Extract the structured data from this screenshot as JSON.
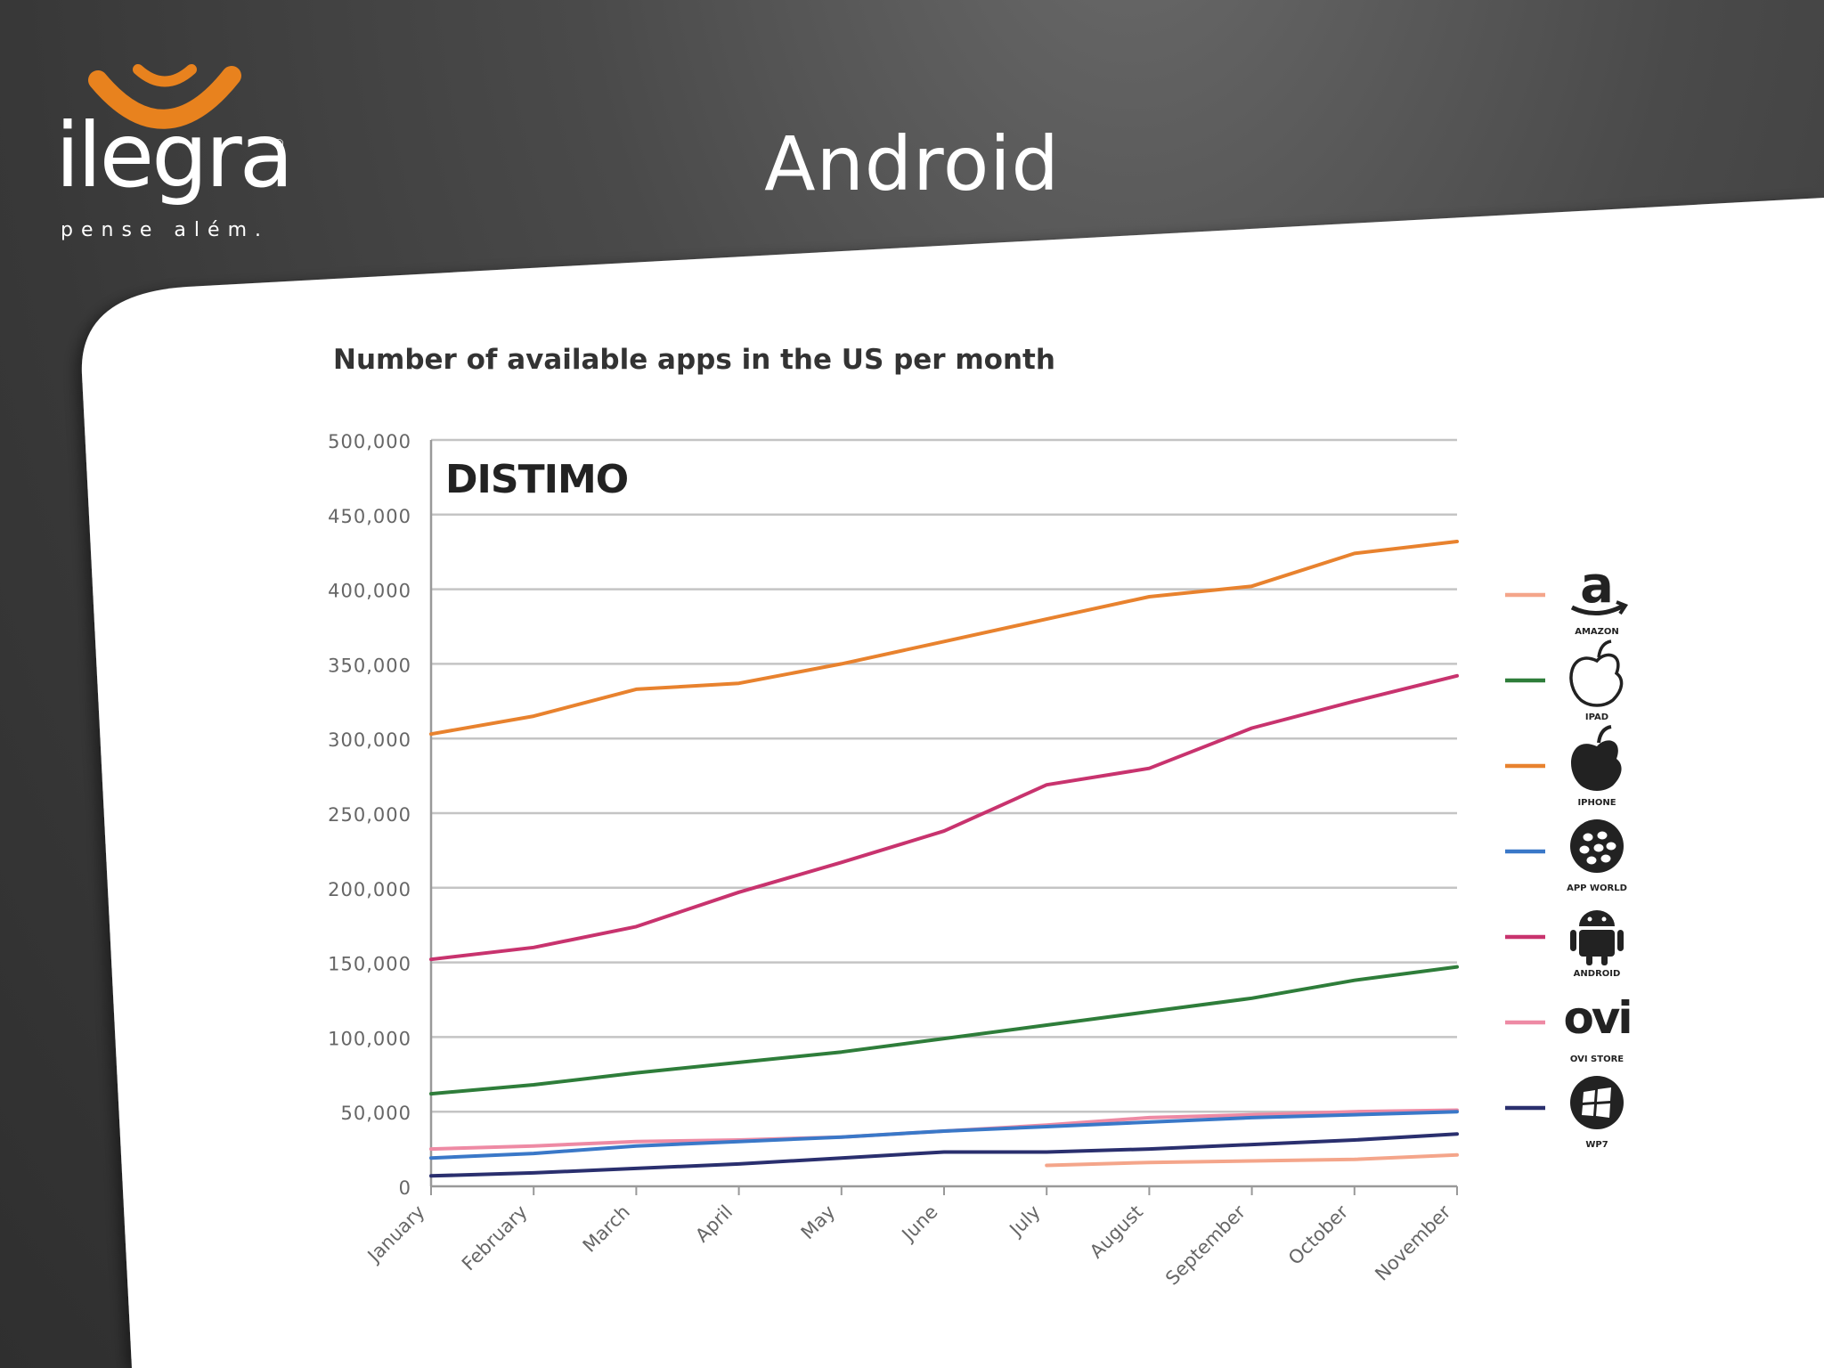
{
  "slide": {
    "title": "Android"
  },
  "logo": {
    "wordmark": "ilegra",
    "tagline": "pense além.",
    "registered": "®",
    "accent_color": "#e8821e"
  },
  "chart_data": {
    "type": "line",
    "title": "Number of available apps in the US per month",
    "watermark": "DISTIMO",
    "xlabel": "",
    "ylabel": "",
    "ylim": [
      0,
      500000
    ],
    "yticks": [
      0,
      50000,
      100000,
      150000,
      200000,
      250000,
      300000,
      350000,
      400000,
      450000,
      500000
    ],
    "ytick_labels": [
      "0",
      "50,000",
      "100,000",
      "150,000",
      "200,000",
      "250,000",
      "300,000",
      "350,000",
      "400,000",
      "450,000",
      "500,000"
    ],
    "categories": [
      "January",
      "February",
      "March",
      "April",
      "May",
      "June",
      "July",
      "August",
      "September",
      "October",
      "November"
    ],
    "grid": true,
    "legend_position": "right",
    "series": [
      {
        "name": "AMAZON",
        "color": "#f4a58a",
        "icon": "amazon-icon",
        "values": [
          null,
          null,
          null,
          null,
          null,
          null,
          14000,
          16000,
          17000,
          18000,
          21000
        ]
      },
      {
        "name": "IPAD",
        "color": "#2e7d3a",
        "icon": "apple-icon",
        "values": [
          62000,
          68000,
          76000,
          83000,
          90000,
          99000,
          108000,
          117000,
          126000,
          138000,
          147000
        ]
      },
      {
        "name": "IPHONE",
        "color": "#e8822e",
        "icon": "apple-solid-icon",
        "values": [
          303000,
          315000,
          333000,
          337000,
          350000,
          365000,
          380000,
          395000,
          402000,
          424000,
          432000
        ]
      },
      {
        "name": "APP WORLD",
        "color": "#3a78c8",
        "icon": "blackberry-icon",
        "values": [
          19000,
          22000,
          27000,
          30000,
          33000,
          37000,
          40000,
          43000,
          46000,
          48000,
          50000
        ]
      },
      {
        "name": "ANDROID",
        "color": "#c8336e",
        "icon": "android-icon",
        "values": [
          152000,
          160000,
          174000,
          197000,
          217000,
          238000,
          269000,
          280000,
          307000,
          325000,
          342000
        ]
      },
      {
        "name": "OVI STORE",
        "color": "#ee8aa4",
        "icon": "ovi-icon",
        "values": [
          25000,
          27000,
          30000,
          31000,
          33000,
          37000,
          41000,
          46000,
          48000,
          50000,
          51000
        ]
      },
      {
        "name": "WP7",
        "color": "#2a2f6e",
        "icon": "windows-icon",
        "values": [
          7000,
          9000,
          12000,
          15000,
          19000,
          23000,
          23000,
          25000,
          28000,
          31000,
          35000
        ]
      }
    ]
  }
}
